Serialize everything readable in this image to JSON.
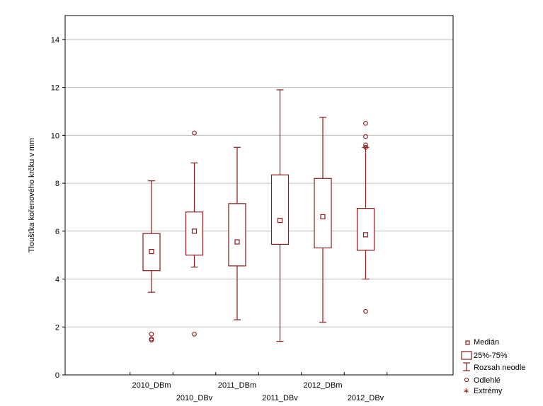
{
  "chart_data": {
    "type": "box",
    "ylabel": "Tloušťka kořenového krčku v mm",
    "ylim": [
      0,
      15
    ],
    "yticks": [
      0,
      2,
      4,
      6,
      8,
      10,
      12,
      14
    ],
    "grid": "horizontal",
    "categories": [
      "2010_DBm",
      "2010_DBv",
      "2011_DBm",
      "2011_DBv",
      "2012_DBm",
      "2012_DBv"
    ],
    "boxes": [
      {
        "category": "2010_DBm",
        "median": 5.15,
        "q1": 4.35,
        "q3": 5.9,
        "whisker_low": 3.45,
        "whisker_high": 8.1,
        "outliers": [
          1.7,
          1.5,
          1.45
        ],
        "extremes": []
      },
      {
        "category": "2010_DBv",
        "median": 6.0,
        "q1": 5.0,
        "q3": 6.8,
        "whisker_low": 4.5,
        "whisker_high": 8.85,
        "outliers": [
          10.1,
          1.7
        ],
        "extremes": []
      },
      {
        "category": "2011_DBm",
        "median": 5.55,
        "q1": 4.55,
        "q3": 7.15,
        "whisker_low": 2.3,
        "whisker_high": 9.5,
        "outliers": [],
        "extremes": []
      },
      {
        "category": "2011_DBv",
        "median": 6.45,
        "q1": 5.45,
        "q3": 8.35,
        "whisker_low": 1.4,
        "whisker_high": 11.9,
        "outliers": [],
        "extremes": []
      },
      {
        "category": "2012_DBm",
        "median": 6.6,
        "q1": 5.3,
        "q3": 8.2,
        "whisker_low": 2.2,
        "whisker_high": 10.75,
        "outliers": [],
        "extremes": []
      },
      {
        "category": "2012_DBv",
        "median": 5.85,
        "q1": 5.2,
        "q3": 6.95,
        "whisker_low": 4.0,
        "whisker_high": 9.5,
        "outliers": [
          10.5,
          9.95,
          9.6,
          9.5,
          2.65
        ],
        "extremes": []
      }
    ],
    "legend": {
      "placement": "bottom-right",
      "items": [
        "Medián",
        "25%-75%",
        "Rozsah neodle",
        "Odlehlé",
        "Extrémy"
      ]
    },
    "colors": {
      "series": "#8b1a1a",
      "grid": "#bdbdbd",
      "frame": "#000000"
    }
  }
}
